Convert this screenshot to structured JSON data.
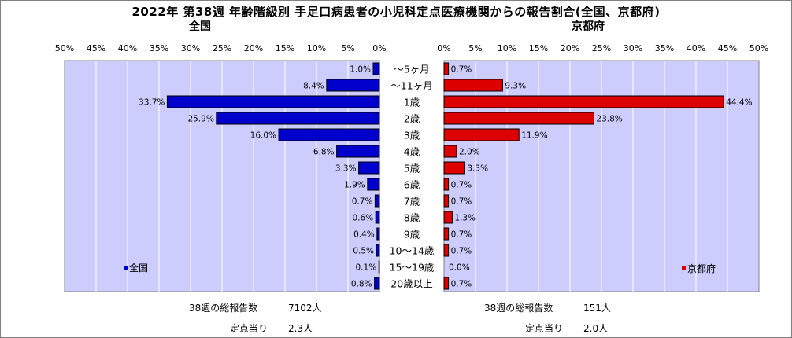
{
  "title": "2022年 第38週 年齢階級別 手足口病患者の小児科定点医療機関からの報告割合(全国、京都府)",
  "colors": {
    "plot_bg": "#cccdfd",
    "national": "#0000cc",
    "kyoto": "#dd0000",
    "grid": "#ffffff"
  },
  "chart_data": [
    {
      "type": "bar",
      "orientation": "horizontal",
      "direction": "right-to-left",
      "title": "全国",
      "legend": "全国",
      "legend_position": "bottom-left",
      "categories": [
        "～5ヶ月",
        "～11ヶ月",
        "1歳",
        "2歳",
        "3歳",
        "4歳",
        "5歳",
        "6歳",
        "7歳",
        "8歳",
        "9歳",
        "10～14歳",
        "15～19歳",
        "20歳以上"
      ],
      "values": [
        1.0,
        8.4,
        33.7,
        25.9,
        16.0,
        6.8,
        3.3,
        1.9,
        0.7,
        0.6,
        0.4,
        0.5,
        0.1,
        0.8
      ],
      "value_labels": [
        "1.0%",
        "8.4%",
        "33.7%",
        "25.9%",
        "16.0%",
        "6.8%",
        "3.3%",
        "1.9%",
        "0.7%",
        "0.6%",
        "0.4%",
        "0.5%",
        "0.1%",
        "0.8%"
      ],
      "xlim": [
        0,
        50
      ],
      "ticks": [
        "50%",
        "45%",
        "40%",
        "35%",
        "30%",
        "25%",
        "20%",
        "15%",
        "10%",
        "5%",
        "0%"
      ],
      "grid": true
    },
    {
      "type": "bar",
      "orientation": "horizontal",
      "direction": "left-to-right",
      "title": "京都府",
      "legend": "京都府",
      "legend_position": "bottom-right",
      "categories": [
        "～5ヶ月",
        "～11ヶ月",
        "1歳",
        "2歳",
        "3歳",
        "4歳",
        "5歳",
        "6歳",
        "7歳",
        "8歳",
        "9歳",
        "10～14歳",
        "15～19歳",
        "20歳以上"
      ],
      "values": [
        0.7,
        9.3,
        44.4,
        23.8,
        11.9,
        2.0,
        3.3,
        0.7,
        0.7,
        1.3,
        0.7,
        0.7,
        0.0,
        0.7
      ],
      "value_labels": [
        "0.7%",
        "9.3%",
        "44.4%",
        "23.8%",
        "11.9%",
        "2.0%",
        "3.3%",
        "0.7%",
        "0.7%",
        "1.3%",
        "0.7%",
        "0.7%",
        "0.0%",
        "0.7%"
      ],
      "xlim": [
        0,
        50
      ],
      "ticks": [
        "0%",
        "5%",
        "10%",
        "15%",
        "20%",
        "25%",
        "30%",
        "35%",
        "40%",
        "45%",
        "50%"
      ],
      "grid": true
    }
  ],
  "summary": {
    "national": {
      "total_label": "38週の総報告数",
      "total_value": "7102人",
      "per_label": "定点当り",
      "per_value": "2.3人"
    },
    "kyoto": {
      "total_label": "38週の総報告数",
      "total_value": "151人",
      "per_label": "定点当り",
      "per_value": "2.0人"
    }
  }
}
